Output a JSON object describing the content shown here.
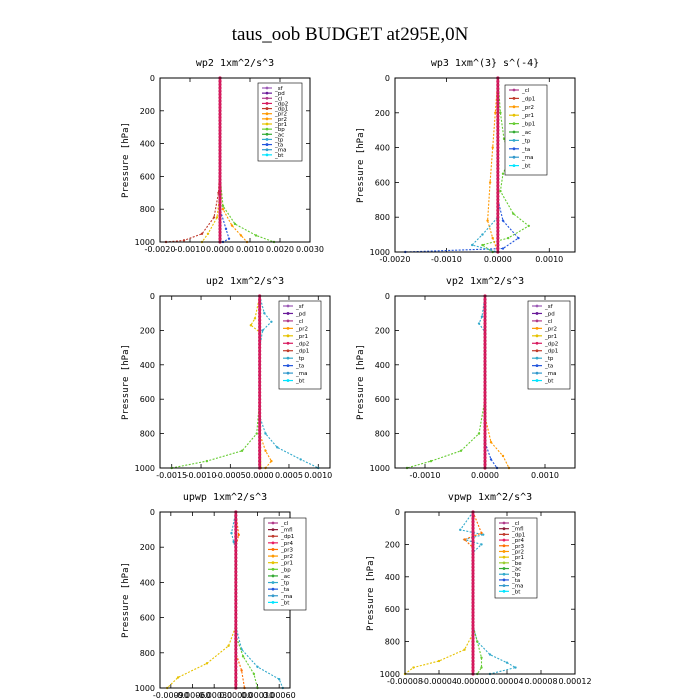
{
  "figure": {
    "title": "taus_oob  BUDGET at295E,0N"
  },
  "colors": {
    "_sf": "#9b59b6",
    "_pd": "#6a1b9a",
    "_cl": "#b03a8a",
    "_dp2": "#d81b60",
    "_dp1": "#c0392b",
    "_pr2": "#ff9900",
    "_pr1": "#e6c200",
    "_bp1": "#66cc33",
    "_bp": "#66cc33",
    "_ac": "#33aa33",
    "_tp": "#33aacc",
    "_ta": "#2255dd",
    "_ma": "#3399cc",
    "_bt": "#00e5ff",
    "_mfl": "#8b1a3a",
    "_pr4": "#e91e63",
    "_pr3": "#ff6f00",
    "_be": "#9acd32",
    "main": "#a0143c"
  },
  "chart_data": [
    {
      "type": "line",
      "title": "wp2   1xm^2/s^3",
      "ylabel": "Pressure [hPa]",
      "xlim": [
        -0.002,
        0.003
      ],
      "ylim": [
        1000,
        0
      ],
      "xticks": [
        "-0.0020",
        "-0.0010",
        "0.0000",
        "0.0010",
        "0.0020",
        "0.0030"
      ],
      "xtick_values": [
        -0.002,
        -0.001,
        0,
        0.001,
        0.002,
        0.003
      ],
      "yticks": [
        "0",
        "200",
        "400",
        "600",
        "800",
        "1000"
      ],
      "legend": [
        "_sf",
        "_pd",
        "_cl",
        "_dp2",
        "_dp1",
        "_pr2",
        "_pr2",
        "_pr1",
        "_bp",
        "_ac",
        "_tp",
        "_ta",
        "_ma",
        "_bt"
      ],
      "series": [
        {
          "key": "_dp1",
          "points": [
            [
              0,
              0
            ],
            [
              0,
              500
            ],
            [
              -5e-05,
              700
            ],
            [
              -0.0002,
              850
            ],
            [
              -0.0006,
              950
            ],
            [
              -0.0012,
              990
            ],
            [
              -0.0018,
              1000
            ]
          ]
        },
        {
          "key": "_pr2",
          "points": [
            [
              0,
              0
            ],
            [
              0,
              600
            ],
            [
              0.0001,
              800
            ],
            [
              0.0004,
              900
            ],
            [
              0.0007,
              960
            ],
            [
              0.0009,
              1000
            ]
          ]
        },
        {
          "key": "_bp",
          "points": [
            [
              0,
              0
            ],
            [
              0,
              600
            ],
            [
              0.0001,
              780
            ],
            [
              0.0005,
              890
            ],
            [
              0.0012,
              960
            ],
            [
              0.0018,
              1000
            ]
          ]
        },
        {
          "key": "_pr1",
          "points": [
            [
              0,
              0
            ],
            [
              0,
              700
            ],
            [
              -0.0001,
              850
            ],
            [
              -0.0004,
              950
            ],
            [
              -0.0006,
              1000
            ]
          ]
        },
        {
          "key": "_ta",
          "points": [
            [
              0,
              0
            ],
            [
              0,
              800
            ],
            [
              0.0002,
              920
            ],
            [
              0.0003,
              980
            ],
            [
              0.0001,
              1000
            ]
          ]
        },
        {
          "key": "_sf",
          "points": [
            [
              0,
              0
            ],
            [
              0,
              1000
            ]
          ]
        }
      ]
    },
    {
      "type": "line",
      "title": "wp3   1xm^(3} s^(-4}",
      "ylabel": "Pressure [hPa]",
      "xlim": [
        -0.002,
        0.0015
      ],
      "ylim": [
        1000,
        0
      ],
      "xticks": [
        "-0.0020",
        "-0.0010",
        "0.0000",
        "0.0010"
      ],
      "xtick_values": [
        -0.002,
        -0.001,
        0,
        0.001
      ],
      "yticks": [
        "0",
        "200",
        "400",
        "600",
        "800",
        "1000"
      ],
      "legend": [
        "_cl",
        "_dp1",
        "_pr2",
        "_pr1",
        "_bp1",
        "_ac",
        "_tp",
        "_ta",
        "_ma",
        "_bt"
      ],
      "series": [
        {
          "key": "_bp1",
          "points": [
            [
              0,
              0
            ],
            [
              5e-05,
              200
            ],
            [
              0.00012,
              350
            ],
            [
              0.00025,
              450
            ],
            [
              0.0001,
              550
            ],
            [
              5e-05,
              650
            ],
            [
              0.0003,
              780
            ],
            [
              0.0006,
              850
            ],
            [
              0.0002,
              920
            ],
            [
              -0.0003,
              960
            ],
            [
              -0.0001,
              1000
            ]
          ]
        },
        {
          "key": "_pr2",
          "points": [
            [
              0,
              0
            ],
            [
              -5e-05,
              200
            ],
            [
              -0.0001,
              400
            ],
            [
              -0.00015,
              600
            ],
            [
              -0.0002,
              820
            ],
            [
              -0.0001,
              920
            ],
            [
              0,
              1000
            ]
          ]
        },
        {
          "key": "_ta",
          "points": [
            [
              0,
              0
            ],
            [
              0,
              700
            ],
            [
              0.0001,
              820
            ],
            [
              0.0004,
              920
            ],
            [
              0.0001,
              980
            ],
            [
              -0.0018,
              1000
            ]
          ]
        },
        {
          "key": "_tp",
          "points": [
            [
              0,
              0
            ],
            [
              0,
              800
            ],
            [
              -0.0003,
              900
            ],
            [
              -0.0005,
              960
            ],
            [
              0,
              1000
            ]
          ]
        },
        {
          "key": "_cl",
          "points": [
            [
              0,
              0
            ],
            [
              0,
              1000
            ]
          ]
        }
      ]
    },
    {
      "type": "line",
      "title": "up2   1xm^2/s^3",
      "ylabel": "Pressure [hPa]",
      "xlim": [
        -0.0017,
        0.0012
      ],
      "ylim": [
        1000,
        0
      ],
      "xticks": [
        "-0.0015",
        "-0.0010",
        "-0.0005",
        "0.0000",
        "0.0005",
        "0.0010"
      ],
      "xtick_values": [
        -0.0015,
        -0.001,
        -0.0005,
        0,
        0.0005,
        0.001
      ],
      "yticks": [
        "0",
        "200",
        "400",
        "600",
        "800",
        "1000"
      ],
      "legend": [
        "_sf",
        "_pd",
        "_cl",
        "_pr2",
        "_pr1",
        "_dp2",
        "_dp1",
        "_tp",
        "_ta",
        "_ma",
        "_bt"
      ],
      "series": [
        {
          "key": "_tp",
          "points": [
            [
              0,
              0
            ],
            [
              8e-05,
              100
            ],
            [
              0.0002,
              150
            ],
            [
              5e-05,
              200
            ],
            [
              0,
              300
            ],
            [
              0,
              700
            ],
            [
              0.0001,
              800
            ],
            [
              0.0003,
              880
            ],
            [
              0.0007,
              950
            ],
            [
              0.001,
              1000
            ]
          ]
        },
        {
          "key": "_pr1",
          "points": [
            [
              0,
              0
            ],
            [
              -8e-05,
              130
            ],
            [
              -0.00015,
              170
            ],
            [
              0,
              210
            ],
            [
              0,
              600
            ],
            [
              2e-05,
              1000
            ]
          ]
        },
        {
          "key": "_bp",
          "points": [
            [
              0,
              0
            ],
            [
              0,
              600
            ],
            [
              -5e-05,
              800
            ],
            [
              -0.0003,
              900
            ],
            [
              -0.0009,
              960
            ],
            [
              -0.0015,
              1000
            ]
          ]
        },
        {
          "key": "_pr2",
          "points": [
            [
              0,
              0
            ],
            [
              0,
              800
            ],
            [
              0.0001,
              900
            ],
            [
              0.0002,
              960
            ],
            [
              0.0001,
              1000
            ]
          ]
        },
        {
          "key": "_sf",
          "points": [
            [
              0,
              0
            ],
            [
              0,
              1000
            ]
          ]
        }
      ]
    },
    {
      "type": "line",
      "title": "vp2   1xm^2/s^3",
      "ylabel": "Pressure [hPa]",
      "xlim": [
        -0.0015,
        0.0015
      ],
      "ylim": [
        1000,
        0
      ],
      "xticks": [
        "-0.0010",
        "0.0000",
        "0.0010"
      ],
      "xtick_values": [
        -0.001,
        0,
        0.001
      ],
      "yticks": [
        "0",
        "200",
        "400",
        "600",
        "800",
        "1000"
      ],
      "legend": [
        "_sf",
        "_pd",
        "_cl",
        "_pr2",
        "_pr1",
        "_dp2",
        "_dp1",
        "_tp",
        "_ta",
        "_ma",
        "_bt"
      ],
      "series": [
        {
          "key": "_tp",
          "points": [
            [
              0,
              0
            ],
            [
              -5e-05,
              120
            ],
            [
              -0.0001,
              160
            ],
            [
              0,
              210
            ],
            [
              0,
              1000
            ]
          ]
        },
        {
          "key": "_bp",
          "points": [
            [
              0,
              0
            ],
            [
              0,
              600
            ],
            [
              -0.0001,
              800
            ],
            [
              -0.0004,
              900
            ],
            [
              -0.0009,
              960
            ],
            [
              -0.0013,
              1000
            ]
          ]
        },
        {
          "key": "_pr2",
          "points": [
            [
              0,
              0
            ],
            [
              0,
              700
            ],
            [
              0.0001,
              850
            ],
            [
              0.0003,
              930
            ],
            [
              0.0004,
              1000
            ]
          ]
        },
        {
          "key": "_ta",
          "points": [
            [
              0,
              0
            ],
            [
              0,
              850
            ],
            [
              0.0001,
              950
            ],
            [
              0.0002,
              1000
            ]
          ]
        },
        {
          "key": "_sf",
          "points": [
            [
              0,
              0
            ],
            [
              0,
              1000
            ]
          ]
        }
      ]
    },
    {
      "type": "line",
      "title": "upwp   1xm^2/s^3",
      "ylabel": "Pressure [hPa]",
      "xlim": [
        -0.00105,
        0.00075
      ],
      "ylim": [
        1000,
        0
      ],
      "xticks": [
        "-0.00090",
        "-0.00060",
        "-0.00030",
        "0.00000",
        "0.00030",
        "0.00060"
      ],
      "xtick_values": [
        -0.0009,
        -0.0006,
        -0.0003,
        0,
        0.0003,
        0.0006
      ],
      "yticks": [
        "0",
        "200",
        "400",
        "600",
        "800",
        "1000"
      ],
      "legend": [
        "_cl",
        "_mfl",
        "_dp1",
        "_pr4",
        "_pr3",
        "_pr2",
        "_pr1",
        "_bp",
        "_ac",
        "_tp",
        "_ta",
        "_ma",
        "_bt"
      ],
      "series": [
        {
          "key": "_pr1",
          "points": [
            [
              0,
              0
            ],
            [
              0,
              650
            ],
            [
              -0.0001,
              760
            ],
            [
              -0.0004,
              860
            ],
            [
              -0.0008,
              940
            ],
            [
              -0.00095,
              1000
            ]
          ]
        },
        {
          "key": "_tp",
          "points": [
            [
              0,
              0
            ],
            [
              -6e-05,
              120
            ],
            [
              -3e-05,
              170
            ],
            [
              0,
              220
            ],
            [
              0,
              650
            ],
            [
              8e-05,
              780
            ],
            [
              0.0003,
              880
            ],
            [
              0.0006,
              950
            ],
            [
              0.00065,
              1000
            ]
          ]
        },
        {
          "key": "_bp",
          "points": [
            [
              0,
              0
            ],
            [
              0,
              700
            ],
            [
              0.0001,
              820
            ],
            [
              0.00025,
              920
            ],
            [
              0.0003,
              1000
            ]
          ]
        },
        {
          "key": "_pr3",
          "points": [
            [
              0,
              0
            ],
            [
              4e-05,
              130
            ],
            [
              0,
              200
            ],
            [
              0,
              800
            ],
            [
              8e-05,
              900
            ],
            [
              0.00012,
              1000
            ]
          ]
        },
        {
          "key": "_cl",
          "points": [
            [
              0,
              0
            ],
            [
              0,
              1000
            ]
          ]
        }
      ]
    },
    {
      "type": "line",
      "title": "vpwp   1xm^2/s^3",
      "ylabel": "Pressure [hPa]",
      "xlim": [
        -8e-05,
        0.00012
      ],
      "ylim": [
        1000,
        0
      ],
      "xticks": [
        "-0.00008",
        "-0.00004",
        "0.00000",
        "0.00004",
        "0.00008",
        "0.00012"
      ],
      "xtick_values": [
        -8e-05,
        -4e-05,
        0,
        4e-05,
        8e-05,
        0.00012
      ],
      "yticks": [
        "0",
        "200",
        "400",
        "600",
        "800",
        "1000"
      ],
      "legend": [
        "_cl",
        "_mfl",
        "_dp1",
        "_pr4",
        "_pr3",
        "_pr2",
        "_pr1",
        "_be",
        "_ac",
        "_tp",
        "_ta",
        "_ma",
        "_bt"
      ],
      "series": [
        {
          "key": "_pr1",
          "points": [
            [
              0,
              0
            ],
            [
              0,
              750
            ],
            [
              -1e-05,
              850
            ],
            [
              -4e-05,
              920
            ],
            [
              -7e-05,
              960
            ],
            [
              -8e-05,
              1000
            ]
          ]
        },
        {
          "key": "_tp",
          "points": [
            [
              0,
              0
            ],
            [
              -1.5e-05,
              110
            ],
            [
              1.2e-05,
              140
            ],
            [
              -1e-05,
              170
            ],
            [
              1e-05,
              200
            ],
            [
              0,
              250
            ],
            [
              0,
              700
            ],
            [
              5e-06,
              800
            ],
            [
              2e-05,
              880
            ],
            [
              4e-05,
              930
            ],
            [
              5e-05,
              960
            ],
            [
              2e-05,
              1000
            ]
          ]
        },
        {
          "key": "_bp",
          "points": [
            [
              0,
              0
            ],
            [
              0,
              700
            ],
            [
              5e-06,
              800
            ],
            [
              1e-05,
              900
            ],
            [
              1e-05,
              960
            ],
            [
              5e-06,
              1000
            ]
          ]
        },
        {
          "key": "_pr3",
          "points": [
            [
              0,
              0
            ],
            [
              1e-05,
              130
            ],
            [
              -1e-05,
              170
            ],
            [
              0,
              220
            ],
            [
              0,
              1000
            ]
          ]
        },
        {
          "key": "_cl",
          "points": [
            [
              0,
              0
            ],
            [
              0,
              1000
            ]
          ]
        }
      ]
    }
  ]
}
